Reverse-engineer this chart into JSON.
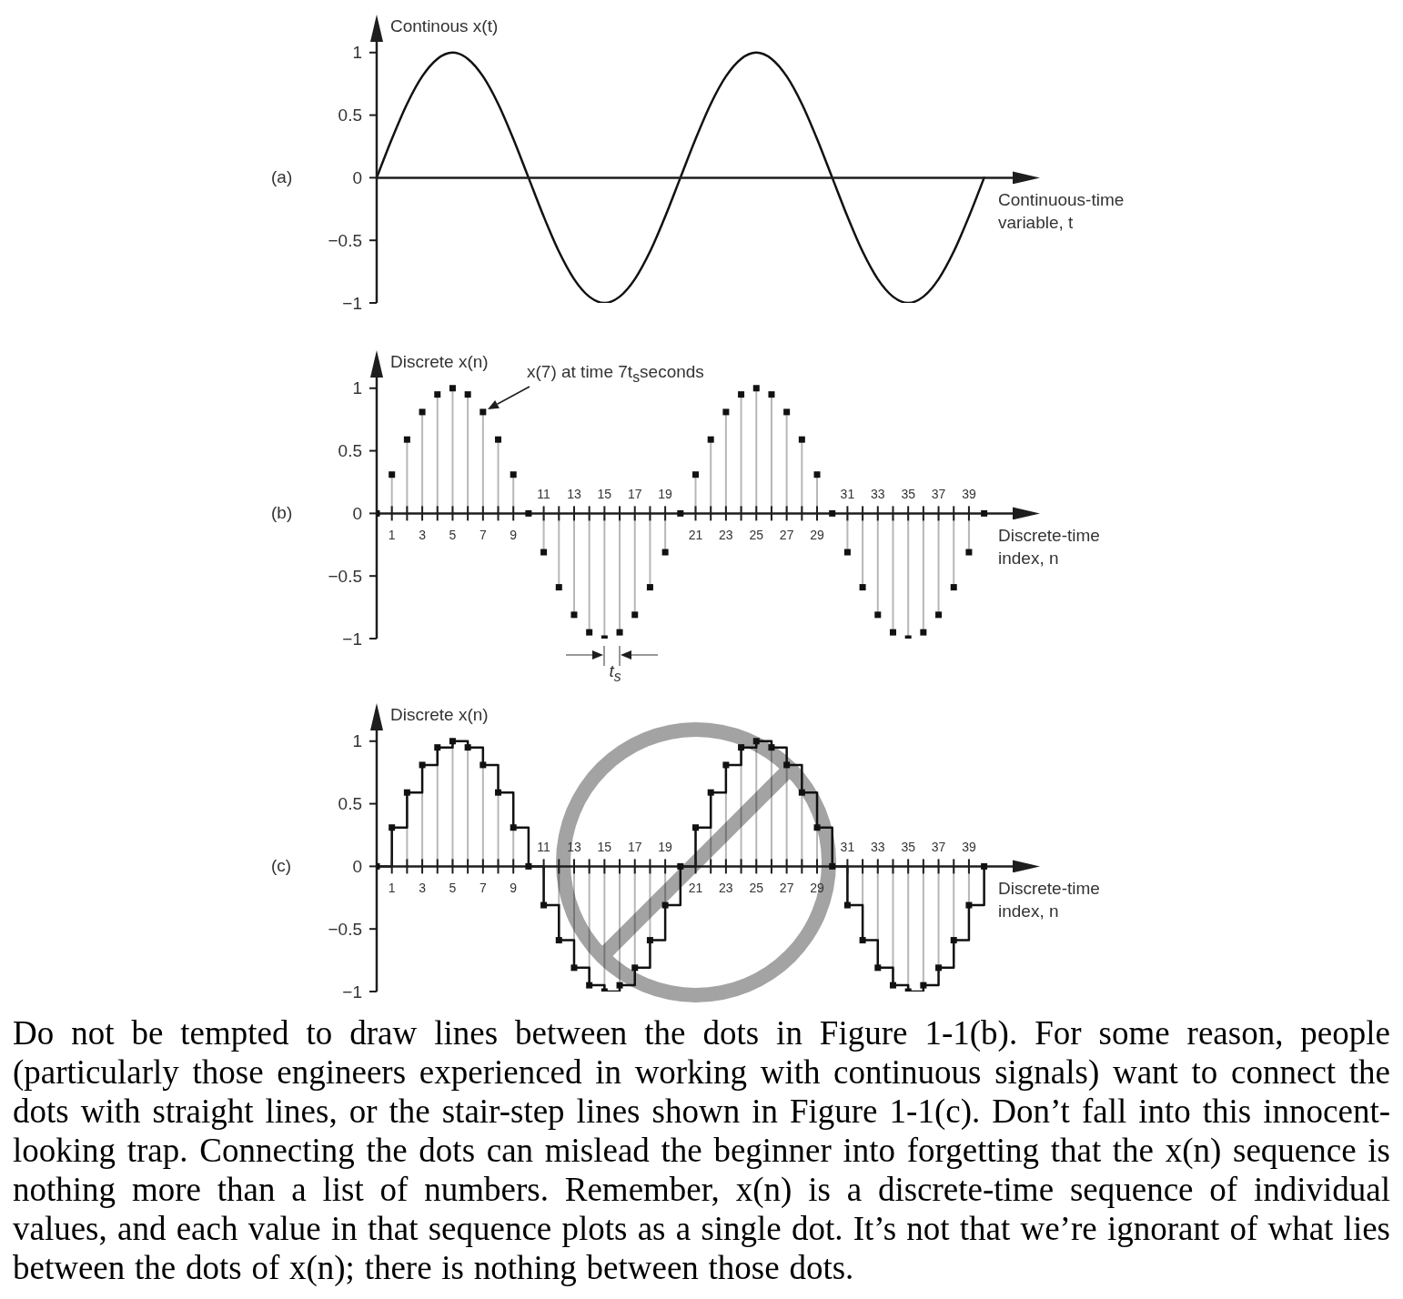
{
  "chart_data": [
    {
      "type": "line",
      "title": "(a)",
      "ylabel": "Continous x(t)",
      "xlabel": "Continuous-time variable, t",
      "categories": [
        null,
        null,
        null,
        null,
        null,
        null,
        null,
        null,
        null,
        null,
        null,
        null,
        null,
        null,
        null,
        null,
        null,
        null,
        null,
        null,
        null,
        null,
        null,
        null,
        null,
        null,
        null,
        null,
        null,
        null,
        null,
        null,
        null,
        null,
        null,
        null,
        null,
        null,
        null,
        null,
        null
      ],
      "values": [
        0,
        0.31,
        0.59,
        0.81,
        0.95,
        1,
        0.95,
        0.81,
        0.59,
        0.31,
        0,
        -0.31,
        -0.59,
        -0.81,
        -0.95,
        -1,
        -0.95,
        -0.81,
        -0.59,
        -0.31,
        0,
        0.31,
        0.59,
        0.81,
        0.95,
        1,
        0.95,
        0.81,
        0.59,
        0.31,
        0,
        -0.31,
        -0.59,
        -0.81,
        -0.95,
        -1,
        -0.95,
        -0.81,
        -0.59,
        -0.31,
        0
      ],
      "color": "#111111",
      "ylim": [
        -1,
        1.1
      ],
      "yticks": [
        -1,
        -0.5,
        0,
        0.5,
        1
      ]
    },
    {
      "type": "lollipop",
      "title": "(b)",
      "ylabel": "Discrete x(n)",
      "xlabel": "Discrete-time index, n",
      "x": [
        0,
        1,
        2,
        3,
        4,
        5,
        6,
        7,
        8,
        9,
        10,
        11,
        12,
        13,
        14,
        15,
        16,
        17,
        18,
        19,
        20,
        21,
        22,
        23,
        24,
        25,
        26,
        27,
        28,
        29,
        30,
        31,
        32,
        33,
        34,
        35,
        36,
        37,
        38,
        39,
        40
      ],
      "values": [
        0,
        0.31,
        0.59,
        0.81,
        0.95,
        1,
        0.95,
        0.81,
        0.59,
        0.31,
        0,
        -0.31,
        -0.59,
        -0.81,
        -0.95,
        -1,
        -0.95,
        -0.81,
        -0.59,
        -0.31,
        0,
        0.31,
        0.59,
        0.81,
        0.95,
        1,
        0.95,
        0.81,
        0.59,
        0.31,
        0,
        -0.31,
        -0.59,
        -0.81,
        -0.95,
        -1,
        -0.95,
        -0.81,
        -0.59,
        -0.31,
        0
      ],
      "color": "#111111",
      "marker": "square",
      "xlim": [
        0,
        42
      ],
      "xticks": [
        1,
        {
          "value": 2,
          "label": null
        },
        3,
        {
          "value": 4,
          "label": null
        },
        5,
        {
          "value": 6,
          "label": null
        },
        7,
        {
          "value": 8,
          "label": null
        },
        9,
        {
          "value": 12,
          "label": null
        },
        {
          "value": 14,
          "label": null
        },
        {
          "value": 16,
          "label": null
        },
        {
          "value": 18,
          "label": null
        },
        21,
        {
          "value": 22,
          "label": null
        },
        23,
        {
          "value": 24,
          "label": null
        },
        25,
        {
          "value": 26,
          "label": null
        },
        27,
        {
          "value": 28,
          "label": null
        },
        29,
        {
          "value": 32,
          "label": null
        },
        {
          "value": 34,
          "label": null
        },
        {
          "value": 36,
          "label": null
        },
        {
          "value": 38,
          "label": null
        }
      ],
      "x2lim": [
        0,
        42
      ],
      "x2ticks": [
        11,
        13,
        15,
        17,
        19,
        31,
        33,
        35,
        37,
        39
      ],
      "ylim": [
        -1,
        1.1
      ],
      "yticks": [
        -1,
        -0.5,
        0,
        0.5,
        1
      ],
      "annotations": [
        "x(7) at time 7t$_{s}$seconds",
        "t$_{s}$"
      ]
    },
    {
      "type": "step",
      "title": "(c)",
      "ylabel": "Discrete x(n)",
      "xlabel": "Discrete-time index, n",
      "x": [
        0,
        1,
        2,
        3,
        4,
        5,
        6,
        7,
        8,
        9,
        10,
        11,
        12,
        13,
        14,
        15,
        16,
        17,
        18,
        19,
        20,
        21,
        22,
        23,
        24,
        25,
        26,
        27,
        28,
        29,
        30,
        31,
        32,
        33,
        34,
        35,
        36,
        37,
        38,
        39,
        40
      ],
      "series": [
        {
          "type": "lollipop",
          "marker": "square",
          "color": "#111111",
          "values": [
            0,
            0.31,
            0.59,
            0.81,
            0.95,
            1,
            0.95,
            0.81,
            0.59,
            0.31,
            0,
            -0.31,
            -0.59,
            -0.81,
            -0.95,
            -1,
            -0.95,
            -0.81,
            -0.59,
            -0.31,
            0,
            0.31,
            0.59,
            0.81,
            0.95,
            1,
            0.95,
            0.81,
            0.59,
            0.31,
            0,
            -0.31,
            -0.59,
            -0.81,
            -0.95,
            -1,
            -0.95,
            -0.81,
            -0.59,
            -0.31,
            0
          ]
        },
        {
          "color": "#111111",
          "values": [
            0,
            0.31,
            0.59,
            0.81,
            0.95,
            1,
            0.95,
            0.81,
            0.59,
            0.31,
            0,
            -0.31,
            -0.59,
            -0.81,
            -0.95,
            -1,
            -0.95,
            -0.81,
            -0.59,
            -0.31,
            0,
            0.31,
            0.59,
            0.81,
            0.95,
            1,
            0.95,
            0.81,
            0.59,
            0.31,
            0,
            -0.31,
            -0.59,
            -0.81,
            -0.95,
            -1,
            -0.95,
            -0.81,
            -0.59,
            -0.31,
            0
          ]
        }
      ],
      "xlim": [
        0,
        42
      ],
      "xticks": [
        1,
        {
          "value": 2,
          "label": null
        },
        3,
        {
          "value": 4,
          "label": null
        },
        5,
        {
          "value": 6,
          "label": null
        },
        7,
        {
          "value": 8,
          "label": null
        },
        9,
        {
          "value": 12,
          "label": null
        },
        {
          "value": 14,
          "label": null
        },
        {
          "value": 16,
          "label": null
        },
        {
          "value": 18,
          "label": null
        },
        21,
        {
          "value": 22,
          "label": null
        },
        23,
        {
          "value": 24,
          "label": null
        },
        25,
        {
          "value": 26,
          "label": null
        },
        27,
        {
          "value": 28,
          "label": null
        },
        29,
        {
          "value": 32,
          "label": null
        },
        {
          "value": 34,
          "label": null
        },
        {
          "value": 36,
          "label": null
        },
        {
          "value": 38,
          "label": null
        }
      ],
      "x2lim": [
        0,
        42
      ],
      "x2ticks": [
        11,
        13,
        15,
        17,
        19,
        31,
        33,
        35,
        37,
        39
      ],
      "ylim": [
        -1,
        1.1
      ],
      "yticks": [
        -1,
        -0.5,
        0,
        0.5,
        1
      ],
      "annotations": [
        "Do not be tempted to draw lines between the dots in Figure 1-1(b). For some reason, people (particularly those engineers experienced in working with continuous signals) want to connect the dots with straight lines, or the stair-step lines shown in Figure 1-1(c). Don’t fall into this innocent-looking trap. Connecting the dots can mislead the beginner into forgetting that the x(n) sequence is nothing more than a list of numbers. Remember, x(n) is a discrete-time sequence of individual values, and each value in that sequence plots as a single dot. It’s not that we’re ignorant of what lies between the dots of x(n); there is nothing between those dots."
      ]
    }
  ]
}
